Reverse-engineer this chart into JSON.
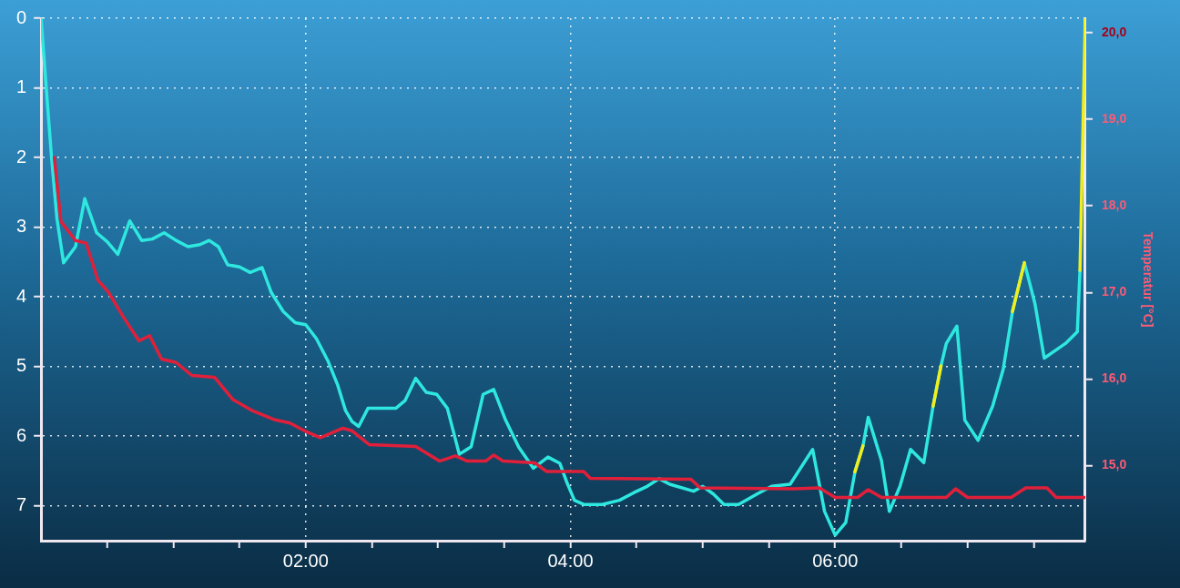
{
  "chart_data": {
    "type": "line",
    "y2label": "Temperatur [°C]",
    "xlim": [
      0,
      7.89
    ],
    "xticks": [
      {
        "value": 0.5,
        "label": null
      },
      {
        "value": 1,
        "label": null
      },
      {
        "value": 1.5,
        "label": null
      },
      {
        "value": 2,
        "label": "02:00"
      },
      {
        "value": 2.5,
        "label": null
      },
      {
        "value": 3,
        "label": null
      },
      {
        "value": 3.5,
        "label": null
      },
      {
        "value": 4,
        "label": "04:00"
      },
      {
        "value": 4.5,
        "label": null
      },
      {
        "value": 5,
        "label": null
      },
      {
        "value": 5.5,
        "label": null
      },
      {
        "value": 6,
        "label": "06:00"
      },
      {
        "value": 6.5,
        "label": null
      },
      {
        "value": 7,
        "label": null
      },
      {
        "value": 7.5,
        "label": null
      }
    ],
    "ylim": [
      7.5,
      0
    ],
    "yticks": [
      0,
      1,
      2,
      3,
      4,
      5,
      6,
      7
    ],
    "y2lim": [
      14.13,
      20.17
    ],
    "y2ticks": [
      {
        "value": 15,
        "label": "15,0"
      },
      {
        "value": 16,
        "label": "16,0"
      },
      {
        "value": 17,
        "label": "17,0"
      },
      {
        "value": 18,
        "label": "18,0"
      },
      {
        "value": 19,
        "label": "19,0"
      },
      {
        "value": 20,
        "label": "20,0"
      }
    ],
    "grid": true,
    "legend": false,
    "series": [
      {
        "color": "#2ee8e0",
        "x": [
          0,
          0.04,
          0.08,
          0.12,
          0.17,
          0.26,
          0.33,
          0.42,
          0.5,
          0.58,
          0.67,
          0.76,
          0.84,
          0.93,
          1.02,
          1.11,
          1.2,
          1.27,
          1.34,
          1.41,
          1.5,
          1.58,
          1.67,
          1.74,
          1.83,
          1.92,
          2,
          2.08,
          2.17,
          2.24,
          2.3,
          2.35,
          2.4,
          2.47,
          2.68,
          2.75,
          2.83,
          2.91,
          2.99,
          3.07,
          3.16,
          3.25,
          3.34,
          3.42,
          3.51,
          3.61,
          3.72,
          3.83,
          3.92,
          3.97,
          4.03,
          4.1,
          4.24,
          4.37,
          4.48,
          4.58,
          4.67,
          4.75,
          4.93,
          5,
          5.08,
          5.16,
          5.27,
          5.41,
          5.52,
          5.66,
          5.83,
          5.92,
          6,
          6.08,
          6.15,
          6.21,
          6.25,
          6.35,
          6.41,
          6.49,
          6.57,
          6.67,
          6.74,
          6.8,
          6.84,
          6.92,
          6.98,
          7.08,
          7.19,
          7.27,
          7.34,
          7.43,
          7.51,
          7.58,
          7.74,
          7.83,
          7.85
        ],
        "values": [
          0,
          1.03,
          2.02,
          2.88,
          3.51,
          3.28,
          2.59,
          3.08,
          3.21,
          3.39,
          2.91,
          3.19,
          3.17,
          3.08,
          3.19,
          3.28,
          3.25,
          3.19,
          3.28,
          3.54,
          3.57,
          3.65,
          3.58,
          3.94,
          4.21,
          4.37,
          4.4,
          4.6,
          4.93,
          5.26,
          5.63,
          5.79,
          5.86,
          5.6,
          5.6,
          5.49,
          5.17,
          5.37,
          5.4,
          5.6,
          6.26,
          6.15,
          5.4,
          5.33,
          5.77,
          6.16,
          6.46,
          6.3,
          6.39,
          6.65,
          6.92,
          6.98,
          6.98,
          6.92,
          6.81,
          6.72,
          6.61,
          6.69,
          6.79,
          6.72,
          6.83,
          6.98,
          6.98,
          6.83,
          6.72,
          6.69,
          6.19,
          7.08,
          7.42,
          7.24,
          6.51,
          6.14,
          5.73,
          6.35,
          7.08,
          6.72,
          6.19,
          6.38,
          5.57,
          4.99,
          4.67,
          4.42,
          5.77,
          6.06,
          5.57,
          5.04,
          4.21,
          3.51,
          4.1,
          4.88,
          4.67,
          4.5,
          3.62
        ]
      },
      {
        "color": "#f2ee1c",
        "x": [
          6.15,
          6.21,
          6.5,
          6.74,
          6.8,
          7,
          7.34,
          7.43,
          7.6,
          7.85,
          7.89
        ],
        "values": [
          6.51,
          6.14,
          null,
          5.57,
          4.99,
          null,
          4.21,
          3.51,
          null,
          3.62,
          0
        ]
      },
      {
        "color": "#e0203a",
        "axis": "y2",
        "x": [
          0.1,
          0.15,
          0.26,
          0.34,
          0.43,
          0.51,
          0.62,
          0.74,
          0.82,
          0.91,
          1.02,
          1.14,
          1.31,
          1.45,
          1.6,
          1.76,
          1.88,
          1.99,
          2.11,
          2.28,
          2.35,
          2.48,
          2.83,
          3.01,
          3.13,
          3.22,
          3.36,
          3.42,
          3.49,
          3.73,
          3.82,
          4.1,
          4.15,
          4.91,
          4.98,
          5.69,
          5.88,
          6,
          6.17,
          6.25,
          6.35,
          6.84,
          6.91,
          7,
          7.33,
          7.44,
          7.6,
          7.67,
          7.89
        ],
        "values": [
          18.56,
          17.82,
          17.6,
          17.57,
          17.14,
          17,
          16.72,
          16.44,
          16.5,
          16.23,
          16.19,
          16.04,
          16.02,
          15.76,
          15.63,
          15.53,
          15.49,
          15.4,
          15.32,
          15.43,
          15.4,
          15.24,
          15.22,
          15.05,
          15.11,
          15.05,
          15.05,
          15.12,
          15.05,
          15.03,
          14.93,
          14.93,
          14.85,
          14.84,
          14.74,
          14.73,
          14.74,
          14.63,
          14.63,
          14.72,
          14.63,
          14.63,
          14.73,
          14.63,
          14.63,
          14.74,
          14.74,
          14.63,
          14.63
        ]
      }
    ]
  }
}
